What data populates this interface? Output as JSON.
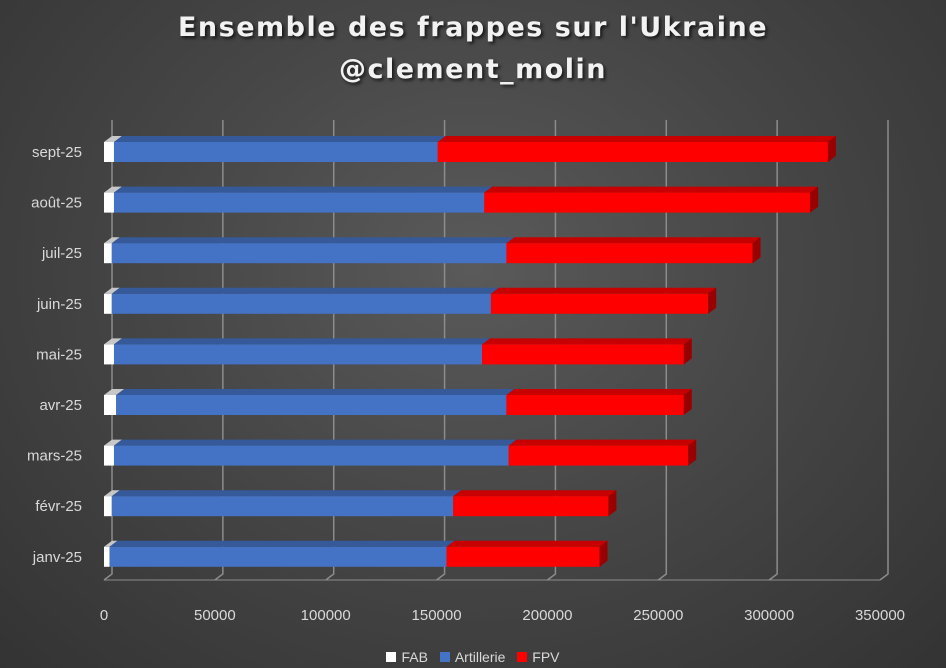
{
  "chart_data": {
    "type": "bar",
    "orientation": "horizontal",
    "stacked": true,
    "title": "Ensemble des frappes sur l'Ukraine",
    "subtitle": "@clement_molin",
    "categories": [
      "janv-25",
      "févr-25",
      "mars-25",
      "avr-25",
      "mai-25",
      "juin-25",
      "juil-25",
      "août-25",
      "sept-25"
    ],
    "series": [
      {
        "name": "FAB",
        "color": "#ffffff",
        "values": [
          2500,
          3500,
          4500,
          5500,
          4500,
          3500,
          3500,
          4500,
          4500
        ]
      },
      {
        "name": "Artillerie",
        "color": "#4472c4",
        "values": [
          152000,
          154000,
          178000,
          176000,
          166000,
          171000,
          178000,
          167000,
          146000
        ]
      },
      {
        "name": "FPV",
        "color": "#ff0000",
        "values": [
          69000,
          70000,
          81000,
          80000,
          91000,
          98000,
          111000,
          147000,
          176000
        ]
      }
    ],
    "xlim": [
      0,
      350000
    ],
    "xticks": [
      "0",
      "50000",
      "100000",
      "150000",
      "200000",
      "250000",
      "300000",
      "350000"
    ],
    "xlabel": "",
    "ylabel": "",
    "grid": true,
    "legend": "bottom"
  }
}
